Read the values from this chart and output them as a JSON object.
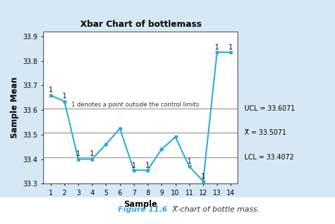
{
  "title": "Xbar Chart of bottlemass",
  "xlabel": "Sample",
  "ylabel": "Sample Mean",
  "samples": [
    1,
    2,
    3,
    4,
    5,
    6,
    7,
    8,
    9,
    10,
    11,
    12,
    13,
    14
  ],
  "values": [
    33.66,
    33.635,
    33.4,
    33.4,
    33.46,
    33.525,
    33.355,
    33.355,
    33.44,
    33.49,
    33.37,
    33.31,
    33.835,
    33.835
  ],
  "UCL": 33.6071,
  "CL": 33.5071,
  "LCL": 33.4072,
  "outside_points": [
    1,
    2,
    3,
    4,
    7,
    8,
    11,
    12,
    13,
    14
  ],
  "line_color": "#29ABE2",
  "control_line_color": "#999999",
  "bg_outer": "#D6E8F5",
  "bg_inner": "#FFFFFF",
  "ylim": [
    33.3,
    33.92
  ],
  "yticks": [
    33.3,
    33.4,
    33.5,
    33.6,
    33.7,
    33.8,
    33.9
  ],
  "annotation_text": "1 denotes a point outside the control limits",
  "UCL_label": "UCL = 33.6071",
  "CL_label": "X̅ = 33.5071",
  "LCL_label": "LCL = 33.4072",
  "figure_caption_bold": "Figure 11.6",
  "figure_caption_rest": "  X̅-chart of bottle mass.",
  "caption_color": "#29ABE2",
  "caption_dark": "#333333"
}
